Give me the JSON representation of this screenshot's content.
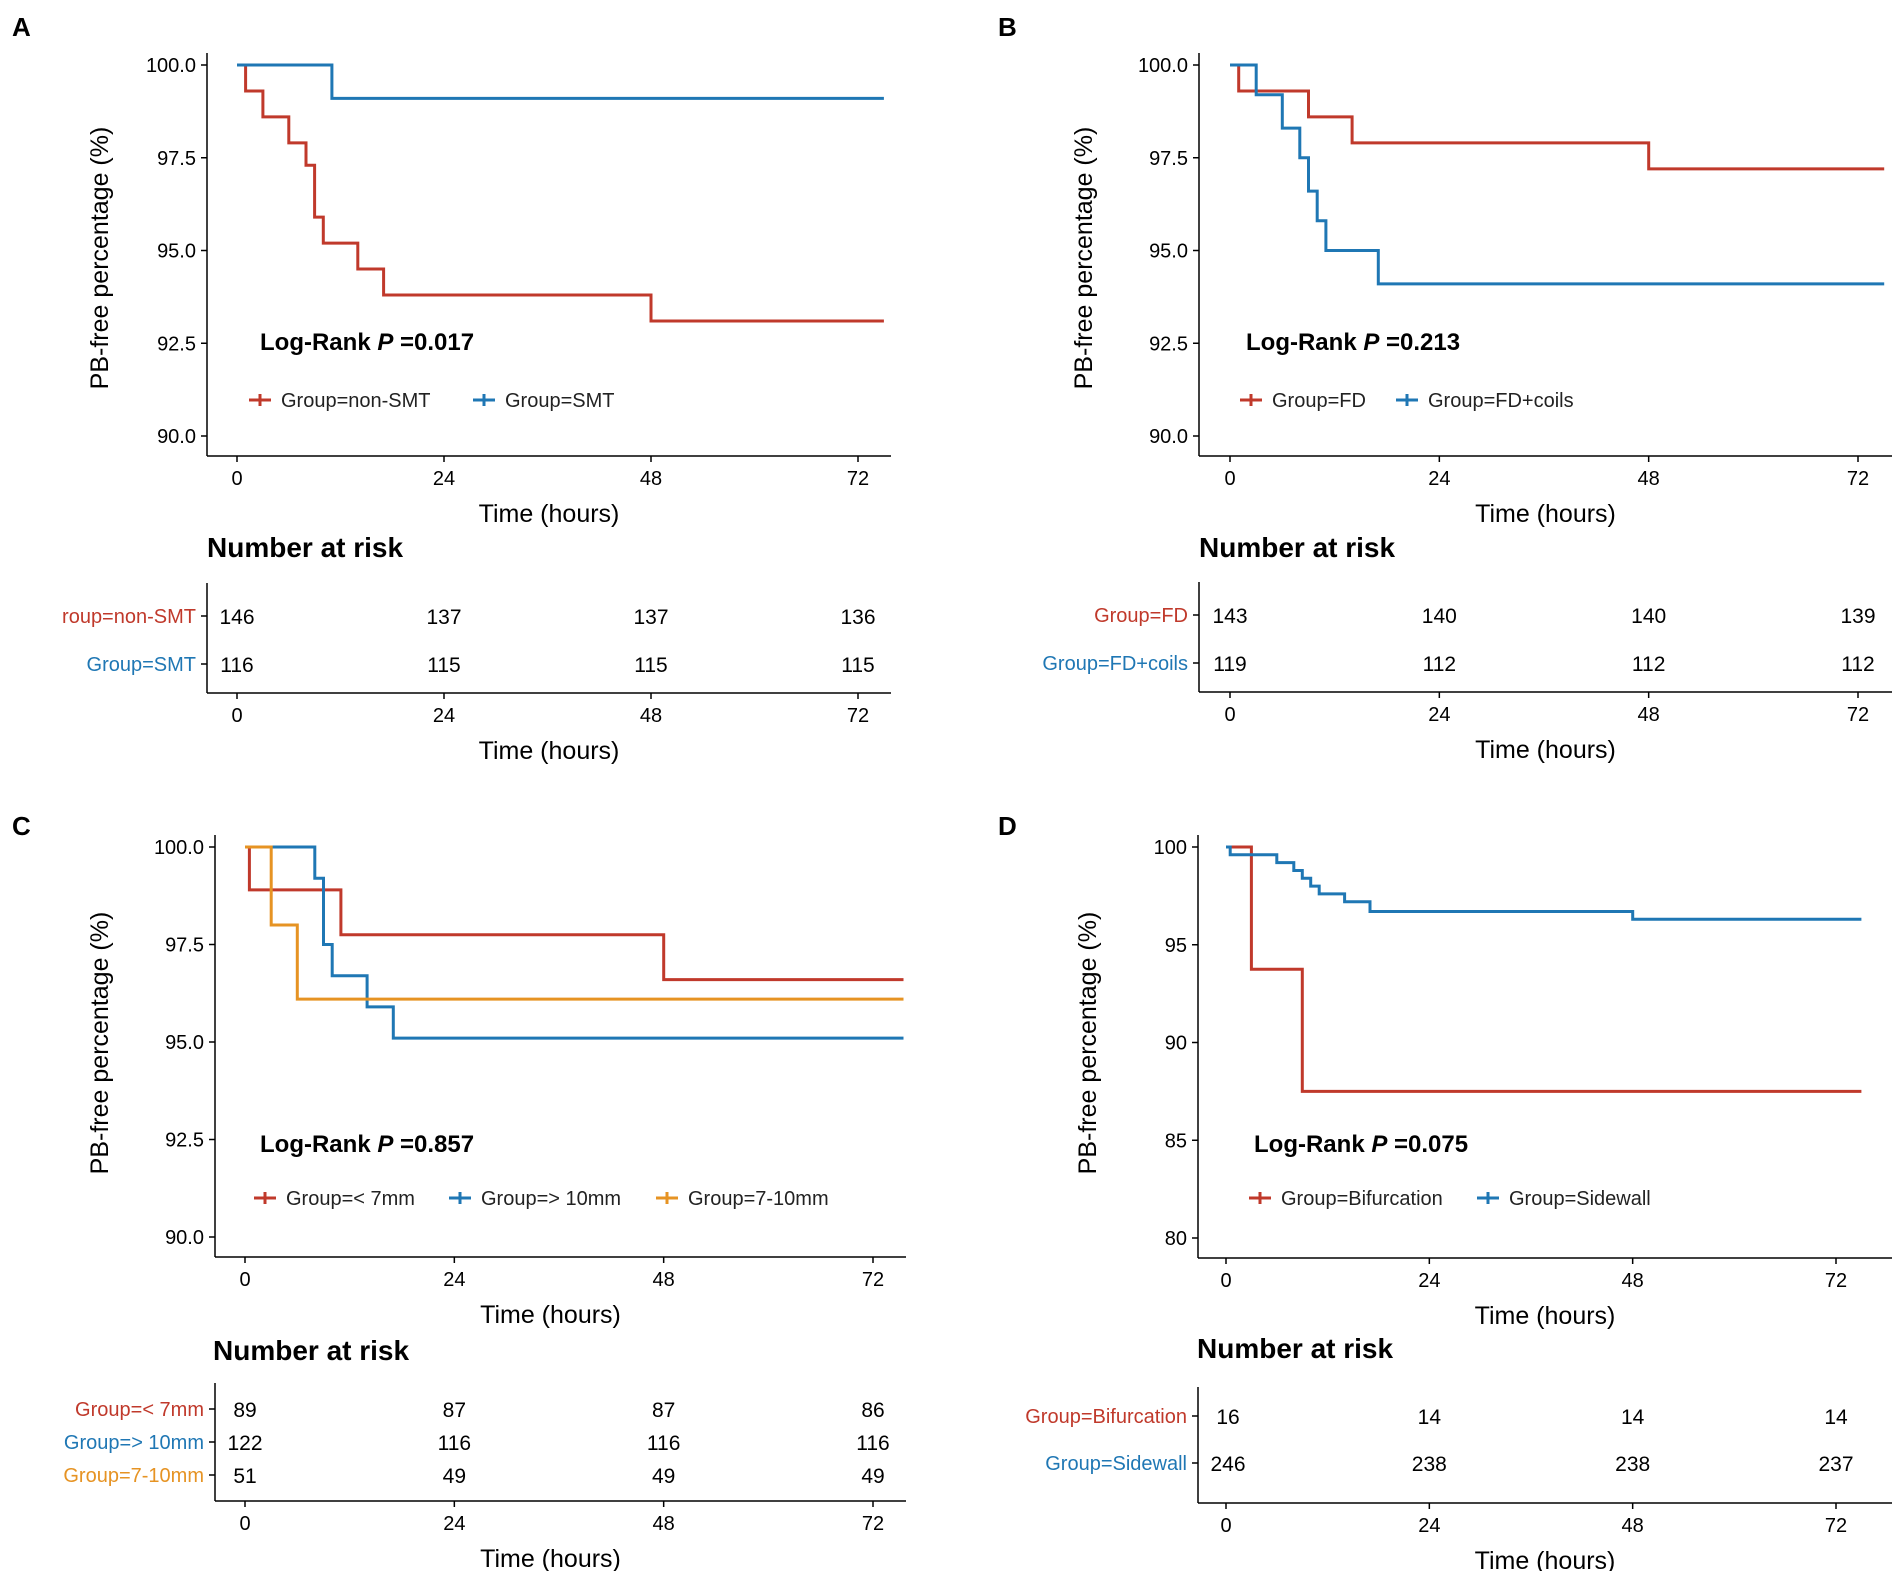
{
  "colors": {
    "red": "#c0392b",
    "blue": "#1f77b4",
    "orange": "#e69323",
    "axis": "#000000"
  },
  "chart_data": [
    {
      "letter": "A",
      "type": "line",
      "subtype": "kaplan-meier",
      "ylabel": "PB-free percentage  (%)",
      "xlabel": "Time (hours)",
      "xlim": [
        0,
        72
      ],
      "ylim": [
        90,
        100
      ],
      "xticks": [
        0,
        24,
        48,
        72
      ],
      "yticks": [
        "90.0",
        "92.5",
        "95.0",
        "97.5",
        "100.0"
      ],
      "logrank_label": "Log-Rank",
      "logrank_p_label": "P",
      "logrank_value": "=0.017",
      "series": [
        {
          "name": "Group=non-SMT",
          "color": "red",
          "x": [
            0,
            1,
            3,
            6,
            8,
            9,
            10,
            14,
            17,
            48,
            75
          ],
          "y": [
            100,
            99.3,
            98.6,
            97.9,
            97.3,
            95.9,
            95.2,
            94.5,
            93.8,
            93.1,
            93.1
          ]
        },
        {
          "name": "Group=SMT",
          "color": "blue",
          "x": [
            0,
            11,
            75
          ],
          "y": [
            100,
            99.1,
            99.1
          ]
        }
      ],
      "risk": {
        "title": "Number at risk",
        "rows": [
          {
            "label": "roup=non-SMT",
            "color": "red",
            "values": [
              "146",
              "137",
              "137",
              "136"
            ]
          },
          {
            "label": "Group=SMT",
            "color": "blue",
            "values": [
              "116",
              "115",
              "115",
              "115"
            ]
          }
        ]
      }
    },
    {
      "letter": "B",
      "type": "line",
      "subtype": "kaplan-meier",
      "ylabel": "PB-free percentage  (%)",
      "xlabel": "Time (hours)",
      "xlim": [
        0,
        72
      ],
      "ylim": [
        90,
        100
      ],
      "xticks": [
        0,
        24,
        48,
        72
      ],
      "yticks": [
        "90.0",
        "92.5",
        "95.0",
        "97.5",
        "100.0"
      ],
      "logrank_label": "Log-Rank",
      "logrank_p_label": "P",
      "logrank_value": "=0.213",
      "series": [
        {
          "name": "Group=FD",
          "color": "red",
          "x": [
            0,
            1,
            9,
            14,
            48,
            75
          ],
          "y": [
            100,
            99.3,
            98.6,
            97.9,
            97.2,
            97.2
          ]
        },
        {
          "name": "Group=FD+coils",
          "color": "blue",
          "x": [
            0,
            3,
            6,
            8,
            9,
            10,
            11,
            17,
            75
          ],
          "y": [
            100,
            99.2,
            98.3,
            97.5,
            96.6,
            95.8,
            95.0,
            94.1,
            94.1
          ]
        }
      ],
      "risk": {
        "title": "Number at risk",
        "rows": [
          {
            "label": "Group=FD",
            "color": "red",
            "values": [
              "143",
              "140",
              "140",
              "139"
            ]
          },
          {
            "label": "Group=FD+coils",
            "color": "blue",
            "values": [
              "119",
              "112",
              "112",
              "112"
            ]
          }
        ]
      }
    },
    {
      "letter": "C",
      "type": "line",
      "subtype": "kaplan-meier",
      "ylabel": "PB-free percentage  (%)",
      "xlabel": "Time (hours)",
      "xlim": [
        0,
        72
      ],
      "ylim": [
        90,
        100
      ],
      "xticks": [
        0,
        24,
        48,
        72
      ],
      "yticks": [
        "90.0",
        "92.5",
        "95.0",
        "97.5",
        "100.0"
      ],
      "logrank_label": "Log-Rank",
      "logrank_p_label": "P",
      "logrank_value": "=0.857",
      "series": [
        {
          "name": "Group=< 7mm",
          "color": "red",
          "x": [
            0,
            0.5,
            11,
            48,
            75.5
          ],
          "y": [
            100,
            98.9,
            97.75,
            96.6,
            96.6
          ]
        },
        {
          "name": "Group=> 10mm",
          "color": "blue",
          "x": [
            0,
            8,
            9,
            10,
            14,
            17,
            75.5
          ],
          "y": [
            100,
            99.2,
            97.5,
            96.7,
            95.9,
            95.1,
            95.1
          ]
        },
        {
          "name": "Group=7-10mm",
          "color": "orange",
          "x": [
            0,
            3,
            6,
            75.5
          ],
          "y": [
            100,
            98.0,
            96.1,
            96.1
          ]
        }
      ],
      "risk": {
        "title": "Number at risk",
        "rows": [
          {
            "label": "Group=< 7mm",
            "color": "red",
            "values": [
              "89",
              "87",
              "87",
              "86"
            ]
          },
          {
            "label": "Group=> 10mm",
            "color": "blue",
            "values": [
              "122",
              "116",
              "116",
              "116"
            ]
          },
          {
            "label": "Group=7-10mm",
            "color": "orange",
            "values": [
              "51",
              "49",
              "49",
              "49"
            ]
          }
        ]
      }
    },
    {
      "letter": "D",
      "type": "line",
      "subtype": "kaplan-meier",
      "ylabel": "PB-free percentage  (%)",
      "xlabel": "Time (hours)",
      "xlim": [
        0,
        72
      ],
      "ylim": [
        80,
        100
      ],
      "xticks": [
        0,
        24,
        48,
        72
      ],
      "yticks": [
        "80",
        "85",
        "90",
        "95",
        "100"
      ],
      "logrank_label": "Log-Rank",
      "logrank_p_label": "P",
      "logrank_value": "=0.075",
      "series": [
        {
          "name": "Group=Bifurcation",
          "color": "red",
          "x": [
            0,
            3,
            9,
            75
          ],
          "y": [
            100,
            93.75,
            87.5,
            87.5
          ]
        },
        {
          "name": "Group=Sidewall",
          "color": "blue",
          "x": [
            0,
            0.5,
            6,
            8,
            9,
            10,
            11,
            14,
            17,
            48,
            75
          ],
          "y": [
            100,
            99.6,
            99.2,
            98.8,
            98.4,
            98.0,
            97.6,
            97.2,
            96.7,
            96.3,
            96.3
          ]
        }
      ],
      "risk": {
        "title": "Number at risk",
        "rows": [
          {
            "label": "Group=Bifurcation",
            "color": "red",
            "values": [
              "16",
              "14",
              "14",
              "14"
            ]
          },
          {
            "label": "Group=Sidewall",
            "color": "blue",
            "values": [
              "246",
              "238",
              "238",
              "237"
            ]
          }
        ]
      }
    }
  ]
}
